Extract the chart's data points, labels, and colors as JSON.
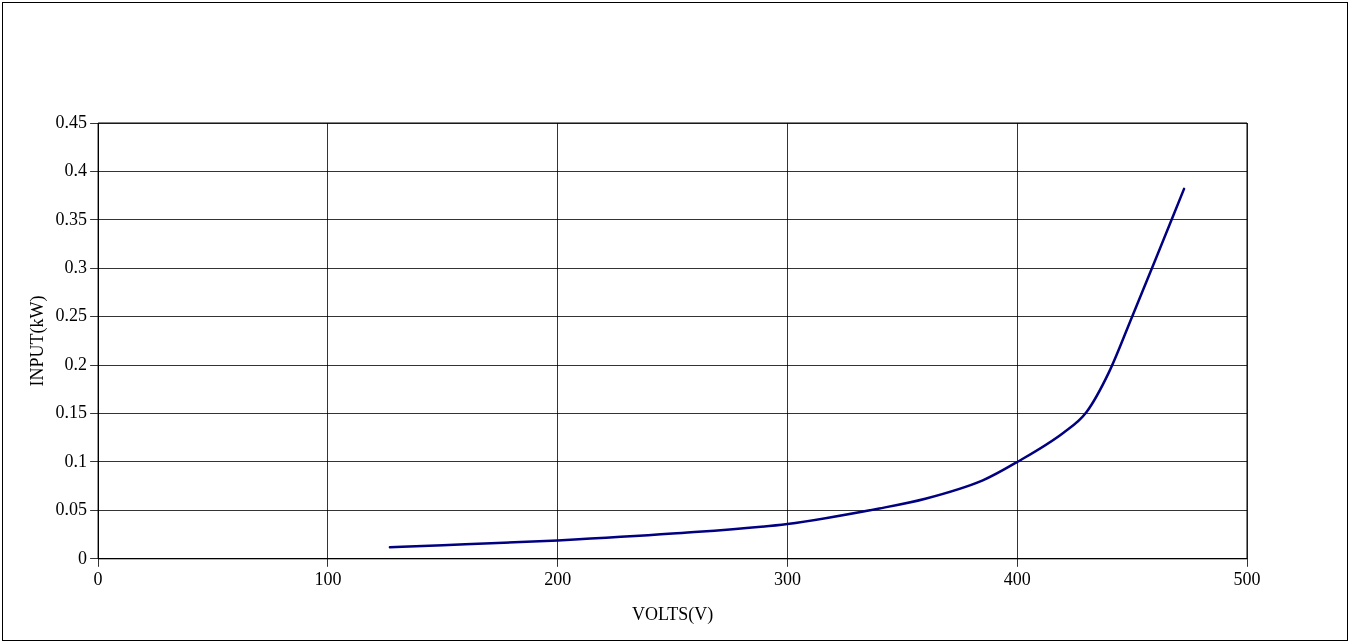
{
  "chart_data": {
    "type": "line",
    "xlabel": "VOLTS(V)",
    "ylabel": "INPUT(kW)",
    "series": [
      {
        "color": "#000080",
        "x": [
          127,
          150,
          200,
          250,
          300,
          340,
          360,
          385,
          400,
          420,
          430,
          440,
          450,
          460,
          472.6
        ],
        "values": [
          0.012,
          0.014,
          0.019,
          0.026,
          0.036,
          0.052,
          0.062,
          0.081,
          0.1,
          0.13,
          0.151,
          0.193,
          0.25,
          0.308,
          0.382
        ]
      }
    ],
    "xlim": [
      0,
      500
    ],
    "xticks": [
      0,
      100,
      200,
      300,
      400,
      500
    ],
    "ylim": [
      0,
      0.45
    ],
    "yticks": [
      0,
      0.05,
      0.1,
      0.15,
      0.2,
      0.25,
      0.3,
      0.35,
      0.4,
      0.45
    ],
    "grid": true,
    "legend": false,
    "marker": "none",
    "line_style": "solid"
  }
}
